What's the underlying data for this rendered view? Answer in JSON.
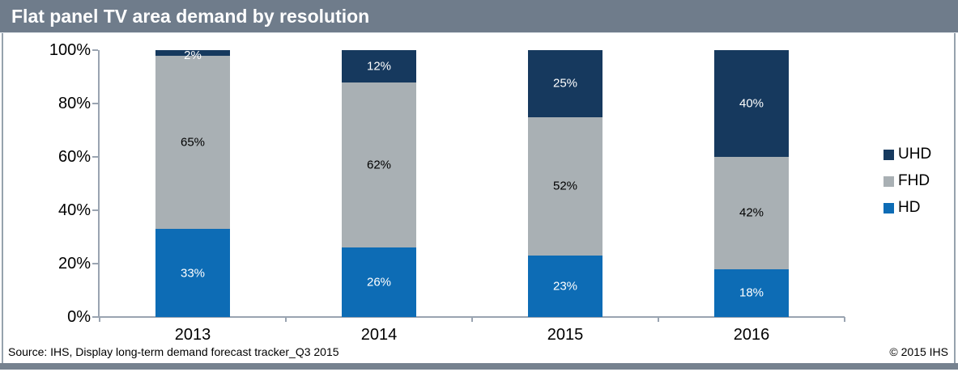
{
  "title_bar": {
    "title": "Flat panel TV area demand by resolution"
  },
  "chart_data": {
    "type": "bar",
    "stacked": true,
    "title": "Flat panel TV area demand by resolution",
    "categories": [
      "2013",
      "2014",
      "2015",
      "2016"
    ],
    "series": [
      {
        "name": "HD",
        "color": "#0d6cb5",
        "label_color": "#ffffff",
        "values": [
          33,
          26,
          23,
          18
        ]
      },
      {
        "name": "FHD",
        "color": "#a9b0b4",
        "label_color": "#000000",
        "values": [
          65,
          62,
          52,
          42
        ]
      },
      {
        "name": "UHD",
        "color": "#16395e",
        "label_color": "#ffffff",
        "values": [
          2,
          12,
          25,
          40
        ]
      }
    ],
    "value_suffix": "%",
    "y_ticks": [
      "0%",
      "20%",
      "40%",
      "60%",
      "80%",
      "100%"
    ],
    "ylim": [
      0,
      100
    ],
    "grid": false,
    "legend_position": "right",
    "legend_order": [
      "UHD",
      "FHD",
      "HD"
    ]
  },
  "footer": {
    "source": "Source: IHS, Display long-term demand forecast tracker_Q3 2015",
    "copyright": "© 2015 IHS"
  },
  "colors": {
    "title_bar_bg": "#6f7c8b",
    "bottom_bar_bg": "#76828f",
    "side_border": "#96a2ad",
    "axis": "#9aa4b1"
  }
}
